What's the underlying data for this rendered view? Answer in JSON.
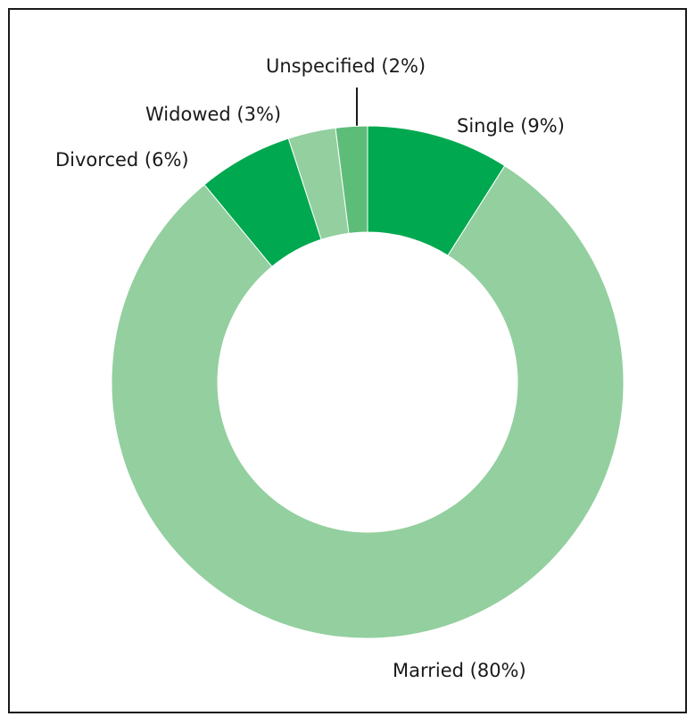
{
  "chart_data": {
    "type": "donut",
    "categories": [
      "Single (9%)",
      "Married (80%)",
      "Divorced (6%)",
      "Widowed (3%)",
      "Unspecified (2%)"
    ],
    "values": [
      9,
      80,
      6,
      3,
      2
    ],
    "colors": [
      "#00a84f",
      "#93cf9f",
      "#00a84f",
      "#93cf9f",
      "#5dbd78"
    ]
  }
}
